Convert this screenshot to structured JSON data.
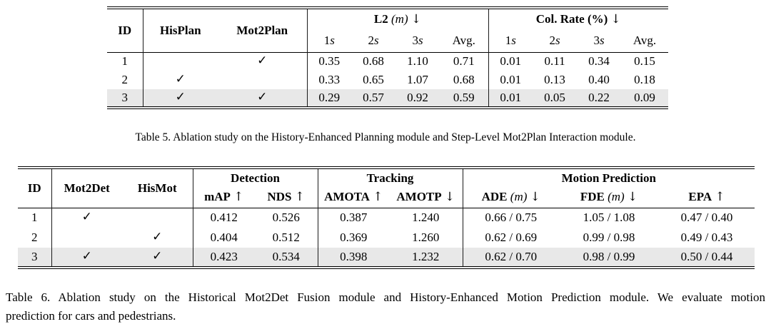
{
  "colors": {
    "background": "#ffffff",
    "highlight_row": "#e8e8e8",
    "rule": "#000000"
  },
  "table5": {
    "caption": "Table 5. Ablation study on the History-Enhanced Planning module and Step-Level Mot2Plan Interaction module.",
    "columns": {
      "id": "ID",
      "hisplan": "HisPlan",
      "mot2plan": "Mot2Plan"
    },
    "groups": [
      {
        "label": "L2",
        "unit_paren": "(m)",
        "arrow": "↓"
      },
      {
        "label": "Col. Rate",
        "unit_paren": "(%)",
        "arrow": "↓"
      }
    ],
    "subheaders": [
      "1s",
      "2s",
      "3s",
      "Avg."
    ],
    "rows": [
      {
        "id": "1",
        "hisplan": "",
        "mot2plan": "✓",
        "l2": [
          "0.35",
          "0.68",
          "1.10",
          "0.71"
        ],
        "col_rate": [
          "0.01",
          "0.11",
          "0.34",
          "0.15"
        ]
      },
      {
        "id": "2",
        "hisplan": "✓",
        "mot2plan": "",
        "l2": [
          "0.33",
          "0.65",
          "1.07",
          "0.68"
        ],
        "col_rate": [
          "0.01",
          "0.13",
          "0.40",
          "0.18"
        ]
      },
      {
        "id": "3",
        "hisplan": "✓",
        "mot2plan": "✓",
        "l2": [
          "0.29",
          "0.57",
          "0.92",
          "0.59"
        ],
        "col_rate": [
          "0.01",
          "0.05",
          "0.22",
          "0.09"
        ]
      }
    ]
  },
  "table6": {
    "caption_lines": [
      "Table 6. Ablation study on the Historical Mot2Det Fusion module and History-Enhanced Motion Prediction module. We evaluate motion",
      "prediction for cars and pedestrians."
    ],
    "columns": {
      "id": "ID",
      "mot2det": "Mot2Det",
      "hismot": "HisMot"
    },
    "groups": [
      {
        "label": "Detection"
      },
      {
        "label": "Tracking"
      },
      {
        "label": "Motion Prediction"
      }
    ],
    "subheaders": [
      {
        "label": "mAP",
        "arrow": "↑"
      },
      {
        "label": "NDS",
        "arrow": "↑"
      },
      {
        "label": "AMOTA",
        "arrow": "↑"
      },
      {
        "label": "AMOTP",
        "arrow": "↓"
      },
      {
        "label": "ADE",
        "unit_paren": "(m)",
        "arrow": "↓"
      },
      {
        "label": "FDE",
        "unit_paren": "(m)",
        "arrow": "↓"
      },
      {
        "label": "EPA",
        "arrow": "↑"
      }
    ],
    "rows": [
      {
        "id": "1",
        "mot2det": "✓",
        "hismot": "",
        "detection": [
          "0.412",
          "0.526"
        ],
        "tracking": [
          "0.387",
          "1.240"
        ],
        "motion": [
          "0.66 / 0.75",
          "1.05 / 1.08",
          "0.47 / 0.40"
        ]
      },
      {
        "id": "2",
        "mot2det": "",
        "hismot": "✓",
        "detection": [
          "0.404",
          "0.512"
        ],
        "tracking": [
          "0.369",
          "1.260"
        ],
        "motion": [
          "0.62 / 0.69",
          "0.99 / 0.98",
          "0.49 / 0.43"
        ]
      },
      {
        "id": "3",
        "mot2det": "✓",
        "hismot": "✓",
        "detection": [
          "0.423",
          "0.534"
        ],
        "tracking": [
          "0.398",
          "1.232"
        ],
        "motion": [
          "0.62 / 0.70",
          "0.98 / 0.99",
          "0.50 / 0.44"
        ]
      }
    ]
  }
}
